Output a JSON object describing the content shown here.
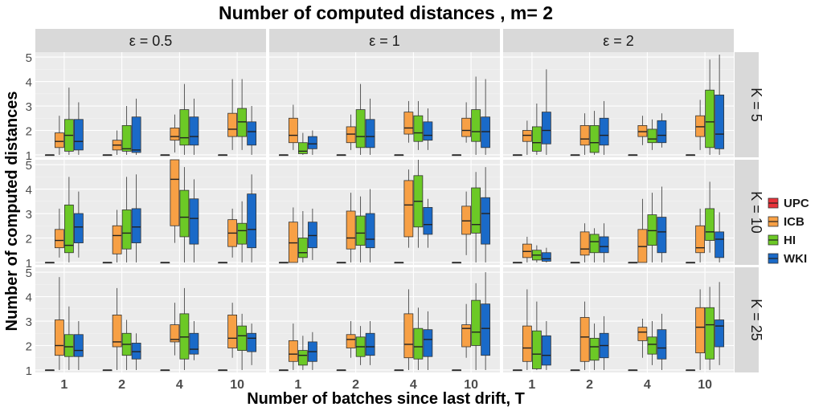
{
  "chart_data": {
    "type": "box",
    "title": "Number of computed distances , m= 2",
    "xlabel": "Number of batches since last drift, T",
    "ylabel": "Number of computed distances",
    "categories": [
      "1",
      "2",
      "4",
      "10"
    ],
    "series_names": [
      "UPC",
      "ICB",
      "HI",
      "WKI"
    ],
    "colors": {
      "UPC": "#e8333a",
      "ICB": "#f7a045",
      "HI": "#6cc926",
      "WKI": "#1a6ac8"
    },
    "col_facets": [
      "ε = 0.5",
      "ε = 1",
      "ε = 2"
    ],
    "row_facets": [
      "K = 5",
      "K = 10",
      "K = 25"
    ],
    "ylim": [
      0.9,
      5.2
    ],
    "yticks": [
      1,
      2,
      3,
      4,
      5
    ],
    "legend_position": "right",
    "grid": true,
    "panels": [
      [
        [
          [
            [
              1,
              1,
              1,
              1,
              1
            ],
            [
              1.0,
              1.3,
              1.55,
              1.9,
              2.6
            ],
            [
              1.0,
              1.15,
              1.8,
              2.45,
              3.75
            ],
            [
              1.0,
              1.2,
              1.55,
              2.45,
              3.15
            ]
          ],
          [
            [
              1,
              1,
              1,
              1,
              1
            ],
            [
              1.0,
              1.2,
              1.4,
              1.6,
              2.0
            ],
            [
              1.0,
              1.15,
              1.25,
              2.2,
              3.0
            ],
            [
              1.0,
              1.1,
              1.2,
              2.55,
              3.3
            ]
          ],
          [
            [
              1,
              1,
              1,
              1,
              1
            ],
            [
              1.1,
              1.6,
              1.75,
              2.1,
              2.65
            ],
            [
              1.0,
              1.4,
              1.7,
              2.85,
              3.9
            ],
            [
              1.0,
              1.4,
              1.75,
              2.55,
              3.3
            ]
          ],
          [
            [
              1,
              1,
              1,
              1,
              1
            ],
            [
              1.2,
              1.75,
              2.05,
              2.7,
              4.1
            ],
            [
              1.2,
              1.75,
              2.35,
              2.9,
              4.1
            ],
            [
              1.0,
              1.4,
              1.95,
              2.35,
              3.0
            ]
          ]
        ],
        [
          [
            [
              1,
              1,
              1,
              1,
              1
            ],
            [
              1.2,
              1.5,
              1.8,
              2.5,
              3.05
            ],
            [
              1.0,
              1.05,
              1.15,
              1.5,
              1.9
            ],
            [
              1.0,
              1.25,
              1.45,
              1.75,
              2.0
            ]
          ],
          [
            [
              1,
              1,
              1,
              1,
              1
            ],
            [
              1.2,
              1.5,
              1.85,
              2.15,
              2.65
            ],
            [
              1.0,
              1.3,
              1.75,
              2.85,
              3.9
            ],
            [
              1.0,
              1.3,
              1.75,
              2.45,
              3.3
            ]
          ],
          [
            [
              1,
              1,
              1,
              1,
              1
            ],
            [
              1.5,
              1.85,
              2.1,
              2.75,
              3.2
            ],
            [
              1.2,
              1.55,
              1.9,
              2.6,
              3.2
            ],
            [
              1.2,
              1.6,
              1.8,
              2.35,
              2.9
            ]
          ],
          [
            [
              1,
              1,
              1,
              1,
              1
            ],
            [
              1.5,
              1.75,
              2.0,
              2.5,
              3.15
            ],
            [
              1.0,
              1.55,
              1.95,
              2.85,
              4.2
            ],
            [
              1.0,
              1.3,
              1.95,
              2.55,
              4.1
            ]
          ]
        ],
        [
          [
            [
              1,
              1,
              1,
              1,
              1
            ],
            [
              1.0,
              1.55,
              1.8,
              2.0,
              2.4
            ],
            [
              1.0,
              1.15,
              1.5,
              2.15,
              3.1
            ],
            [
              1.0,
              1.45,
              2.0,
              2.75,
              4.5
            ]
          ],
          [
            [
              1,
              1,
              1,
              1,
              1
            ],
            [
              1.0,
              1.4,
              1.65,
              2.2,
              2.7
            ],
            [
              1.0,
              1.1,
              1.5,
              2.2,
              2.8
            ],
            [
              1.0,
              1.4,
              1.8,
              2.5,
              3.2
            ]
          ],
          [
            [
              1,
              1,
              1,
              1,
              1
            ],
            [
              1.4,
              1.75,
              1.95,
              2.2,
              2.6
            ],
            [
              1.2,
              1.5,
              1.65,
              2.05,
              2.45
            ],
            [
              1.3,
              1.5,
              1.8,
              2.4,
              2.7
            ]
          ],
          [
            [
              1,
              1,
              1,
              1,
              1
            ],
            [
              1.2,
              1.75,
              2.15,
              2.6,
              3.25
            ],
            [
              1.0,
              1.3,
              2.35,
              3.65,
              4.9
            ],
            [
              1.0,
              1.25,
              1.85,
              3.45,
              5.1
            ]
          ]
        ]
      ],
      [
        [
          [
            [
              1,
              1,
              1,
              1,
              1
            ],
            [
              1.2,
              1.6,
              1.9,
              2.35,
              3.2
            ],
            [
              1.0,
              1.4,
              1.7,
              3.35,
              4.5
            ],
            [
              1.2,
              1.8,
              2.45,
              3.0,
              3.9
            ]
          ],
          [
            [
              1,
              1,
              1,
              1,
              1
            ],
            [
              1.0,
              1.35,
              2.1,
              2.5,
              3.15
            ],
            [
              1.0,
              1.55,
              2.2,
              3.15,
              4.5
            ],
            [
              1.0,
              1.8,
              2.45,
              3.2,
              4.6
            ]
          ],
          [
            [
              1,
              1,
              1,
              1,
              1
            ],
            [
              1.8,
              2.5,
              4.4,
              5.2,
              5.2
            ],
            [
              1.0,
              2.05,
              2.85,
              3.95,
              4.9
            ],
            [
              1.0,
              1.75,
              2.8,
              3.6,
              4.4
            ]
          ],
          [
            [
              1,
              1,
              1,
              1,
              1
            ],
            [
              1.2,
              1.65,
              2.2,
              2.75,
              3.2
            ],
            [
              1.0,
              1.75,
              2.3,
              2.6,
              3.5
            ],
            [
              1.0,
              1.6,
              2.35,
              3.8,
              4.6
            ]
          ]
        ],
        [
          [
            [
              1,
              1,
              1,
              1,
              1
            ],
            [
              1.0,
              1.0,
              1.8,
              2.65,
              3.25
            ],
            [
              1.0,
              1.2,
              1.4,
              2.0,
              3.1
            ],
            [
              1.1,
              1.6,
              2.1,
              2.65,
              3.2
            ]
          ],
          [
            [
              1,
              1,
              1,
              1,
              1
            ],
            [
              1.0,
              1.55,
              2.0,
              3.1,
              3.85
            ],
            [
              1.0,
              1.7,
              2.2,
              2.9,
              3.7
            ],
            [
              1.0,
              1.6,
              1.95,
              3.0,
              4.0
            ]
          ],
          [
            [
              1,
              1,
              1,
              1,
              1
            ],
            [
              1.6,
              2.05,
              3.35,
              4.35,
              4.8
            ],
            [
              1.6,
              2.45,
              3.5,
              4.55,
              5.2
            ],
            [
              1.6,
              2.15,
              2.55,
              3.25,
              3.6
            ]
          ],
          [
            [
              1,
              1,
              1,
              1,
              1
            ],
            [
              1.3,
              2.15,
              2.7,
              3.3,
              3.9
            ],
            [
              1.0,
              2.2,
              2.55,
              4.05,
              4.7
            ],
            [
              1.0,
              1.75,
              3.0,
              3.65,
              4.9
            ]
          ]
        ],
        [
          [
            [
              1,
              1,
              1,
              1,
              1
            ],
            [
              1.0,
              1.2,
              1.45,
              1.75,
              2.05
            ],
            [
              1.0,
              1.1,
              1.3,
              1.5,
              1.7
            ],
            [
              1.0,
              1.05,
              1.15,
              1.4,
              1.6
            ]
          ],
          [
            [
              1,
              1,
              1,
              1,
              1
            ],
            [
              1.0,
              1.3,
              1.55,
              2.25,
              2.6
            ],
            [
              1.0,
              1.4,
              1.85,
              2.15,
              2.4
            ],
            [
              1.0,
              1.4,
              1.65,
              2.05,
              2.6
            ]
          ],
          [
            [
              1,
              1,
              1,
              1,
              1
            ],
            [
              1.0,
              1.0,
              1.65,
              2.35,
              3.6
            ],
            [
              1.0,
              1.7,
              2.3,
              2.95,
              3.85
            ],
            [
              1.0,
              1.4,
              2.25,
              2.85,
              4.1
            ]
          ],
          [
            [
              1,
              1,
              1,
              1,
              1
            ],
            [
              1.0,
              1.4,
              1.6,
              2.5,
              3.2
            ],
            [
              1.4,
              1.9,
              2.25,
              3.2,
              4.3
            ],
            [
              1.0,
              1.2,
              1.95,
              2.25,
              3.05
            ]
          ]
        ]
      ],
      [
        [
          [
            [
              1,
              1,
              1,
              1,
              1
            ],
            [
              1.0,
              1.6,
              2.0,
              3.05,
              4.8
            ],
            [
              1.0,
              1.55,
              1.95,
              2.45,
              3.6
            ],
            [
              1.0,
              1.55,
              1.8,
              2.45,
              3.0
            ]
          ],
          [
            [
              1,
              1,
              1,
              1,
              1
            ],
            [
              1.0,
              1.95,
              2.15,
              3.25,
              4.35
            ],
            [
              1.0,
              1.6,
              2.05,
              2.5,
              3.05
            ],
            [
              1.0,
              1.45,
              1.75,
              2.1,
              2.5
            ]
          ],
          [
            [
              1,
              1,
              1,
              1,
              1
            ],
            [
              1.6,
              2.15,
              2.25,
              2.85,
              3.75
            ],
            [
              1.0,
              1.45,
              2.35,
              3.3,
              4.35
            ],
            [
              1.4,
              1.65,
              1.85,
              2.5,
              3.0
            ]
          ],
          [
            [
              1,
              1,
              1,
              1,
              1
            ],
            [
              1.5,
              1.9,
              2.3,
              3.25,
              3.75
            ],
            [
              1.0,
              1.8,
              2.4,
              2.8,
              3.3
            ],
            [
              1.2,
              1.75,
              2.3,
              2.5,
              2.9
            ]
          ]
        ],
        [
          [
            [
              1,
              1,
              1,
              1,
              1
            ],
            [
              1.0,
              1.35,
              1.65,
              2.2,
              2.9
            ],
            [
              1.0,
              1.2,
              1.6,
              1.8,
              2.4
            ],
            [
              1.0,
              1.35,
              1.75,
              2.15,
              2.55
            ]
          ],
          [
            [
              1,
              1,
              1,
              1,
              1
            ],
            [
              1.5,
              1.9,
              2.25,
              2.45,
              3.0
            ],
            [
              1.2,
              1.55,
              1.95,
              2.35,
              2.8
            ],
            [
              1.2,
              1.6,
              1.95,
              2.5,
              3.0
            ]
          ],
          [
            [
              1,
              1,
              1,
              1,
              1
            ],
            [
              1.0,
              1.5,
              2.05,
              3.3,
              4.3
            ],
            [
              1.0,
              1.45,
              1.95,
              2.7,
              3.55
            ],
            [
              1.0,
              1.55,
              2.25,
              2.65,
              3.4
            ]
          ],
          [
            [
              1,
              1,
              1,
              1,
              1
            ],
            [
              1.5,
              1.95,
              2.7,
              2.85,
              3.7
            ],
            [
              1.0,
              2.0,
              2.55,
              3.85,
              4.55
            ],
            [
              1.0,
              1.6,
              2.7,
              3.7,
              5.0
            ]
          ]
        ],
        [
          [
            [
              1,
              1,
              1,
              1,
              1
            ],
            [
              1.0,
              1.35,
              1.9,
              2.8,
              4.3
            ],
            [
              1.0,
              1.05,
              1.65,
              2.6,
              3.8
            ],
            [
              1.0,
              1.2,
              1.6,
              2.4,
              3.0
            ]
          ],
          [
            [
              1,
              1,
              1,
              1,
              1
            ],
            [
              1.0,
              1.35,
              2.35,
              3.15,
              3.8
            ],
            [
              1.0,
              1.4,
              1.95,
              2.3,
              2.9
            ],
            [
              1.0,
              1.5,
              2.0,
              2.5,
              3.2
            ]
          ],
          [
            [
              1,
              1,
              1,
              1,
              1
            ],
            [
              1.5,
              2.2,
              2.55,
              2.75,
              3.1
            ],
            [
              1.2,
              1.65,
              2.05,
              2.35,
              3.0
            ],
            [
              1.0,
              1.45,
              1.9,
              2.65,
              3.3
            ]
          ],
          [
            [
              1,
              1,
              1,
              1,
              1
            ],
            [
              1.0,
              1.7,
              2.75,
              3.55,
              4.3
            ],
            [
              1.0,
              1.45,
              2.85,
              3.55,
              4.4
            ],
            [
              1.2,
              1.95,
              2.8,
              3.05,
              4.6
            ]
          ]
        ]
      ]
    ]
  }
}
